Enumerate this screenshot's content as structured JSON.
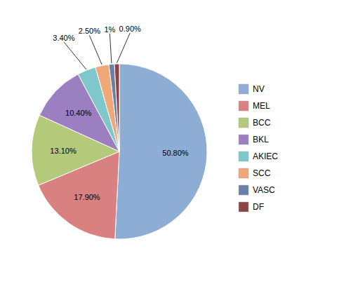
{
  "chart_data": {
    "type": "pie",
    "categories": [
      "NV",
      "MEL",
      "BCC",
      "BKL",
      "AKIEC",
      "SCC",
      "VASC",
      "DF"
    ],
    "values": [
      50.8,
      17.9,
      13.1,
      10.4,
      3.4,
      2.5,
      1.0,
      0.9
    ],
    "value_labels": [
      "50.80%",
      "17.90%",
      "13.10%",
      "10.40%",
      "3.40%",
      "2.50%",
      "1%",
      "0.90%"
    ],
    "colors": [
      "#8eadd4",
      "#d98080",
      "#b5c97a",
      "#9b7fc0",
      "#7ec8cc",
      "#f0a878",
      "#6b80a8",
      "#8b4545"
    ],
    "legend": "right",
    "data_labels": true
  }
}
